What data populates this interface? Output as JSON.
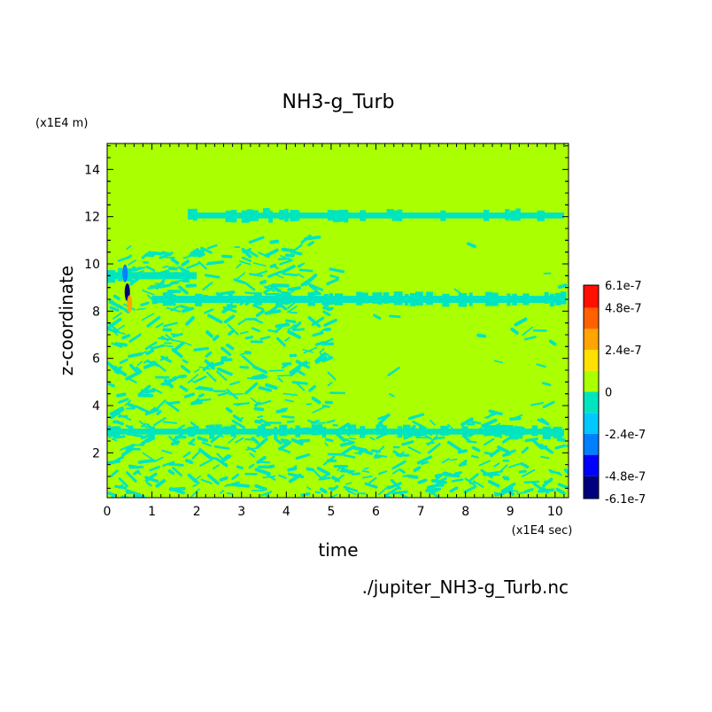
{
  "chart_data": {
    "type": "heatmap",
    "title": "NH3-g_Turb",
    "xlabel": "time",
    "ylabel": "z-coordinate",
    "x_unit": "(x1E4 sec)",
    "y_unit": "(x1E4 m)",
    "source": "./jupiter_NH3-g_Turb.nc",
    "xlim": [
      0,
      10.3
    ],
    "ylim": [
      0.1,
      15.1
    ],
    "xticks": [
      "0",
      "1",
      "2",
      "3",
      "4",
      "5",
      "6",
      "7",
      "8",
      "9",
      "10"
    ],
    "yticks": [
      "2",
      "4",
      "6",
      "8",
      "10",
      "12",
      "14"
    ],
    "colorbar": {
      "levels": [
        -6.1e-07,
        -4.8e-07,
        -3.6e-07,
        -2.4e-07,
        -1.2e-07,
        0,
        1.2e-07,
        2.4e-07,
        3.6e-07,
        4.8e-07,
        6.1e-07
      ],
      "colors": [
        "#00007f",
        "#0000ff",
        "#007fff",
        "#00c8ff",
        "#00e5c0",
        "#aaff00",
        "#ffe000",
        "#ffa500",
        "#ff6000",
        "#ff1000"
      ],
      "labels": [
        "6.1e-7",
        "4.8e-7",
        "2.4e-7",
        "0",
        "-2.4e-7",
        "-4.8e-7",
        "-6.1e-7"
      ]
    },
    "background_color": "#aaff00",
    "negative_color": "#00e5c0",
    "bands": [
      {
        "t0": 1.8,
        "t1": 10.2,
        "z": 12.05,
        "thickness": 0.25
      },
      {
        "t0": 1.0,
        "t1": 10.2,
        "z": 8.5,
        "thickness": 0.3
      },
      {
        "t0": 0.0,
        "t1": 10.2,
        "z": 2.9,
        "thickness": 0.25
      },
      {
        "t0": 0.0,
        "t1": 2.0,
        "z": 9.5,
        "thickness": 0.3
      }
    ],
    "anomalies": [
      {
        "t": 0.45,
        "z": 8.8,
        "sign": "negative",
        "magnitude": 6.1e-07
      },
      {
        "t": 0.5,
        "z": 8.3,
        "sign": "positive",
        "magnitude": 3.6e-07
      },
      {
        "t": 0.4,
        "z": 9.6,
        "sign": "negative",
        "magnitude": 2.4e-07
      }
    ]
  }
}
